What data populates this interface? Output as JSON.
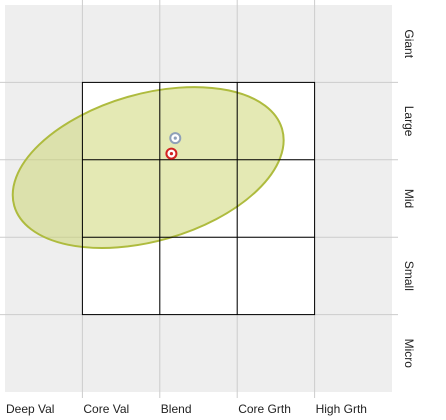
{
  "chart_data": {
    "type": "scatter",
    "x_categories": [
      "Deep Val",
      "Core Val",
      "Blend",
      "Core Grth",
      "High Grth"
    ],
    "y_categories": [
      "Giant",
      "Large",
      "Mid",
      "Small",
      "Micro"
    ],
    "highlighted_region": {
      "x_from": "Core Val",
      "x_to": "Core Grth",
      "y_from": "Large",
      "y_to": "Small"
    },
    "ownership_zone": {
      "center_x": 1.35,
      "center_y": 1.6,
      "radius_x": 1.8,
      "radius_y": 0.95,
      "rotation_deg": -16
    },
    "points": [
      {
        "x": 1.7,
        "y": 1.22,
        "role": "historical"
      },
      {
        "x": 1.65,
        "y": 1.42,
        "role": "current"
      }
    ],
    "grid": true
  },
  "colors": {
    "outer_background": "#eeeeee",
    "inner_background": "#ffffff",
    "grid_line": "#cccccc",
    "inner_line": "#000000",
    "zone_fill": "#cad46a",
    "zone_stroke": "#aebb3e",
    "current_point": "#d22222",
    "historical_point": "#8fa0b8"
  }
}
